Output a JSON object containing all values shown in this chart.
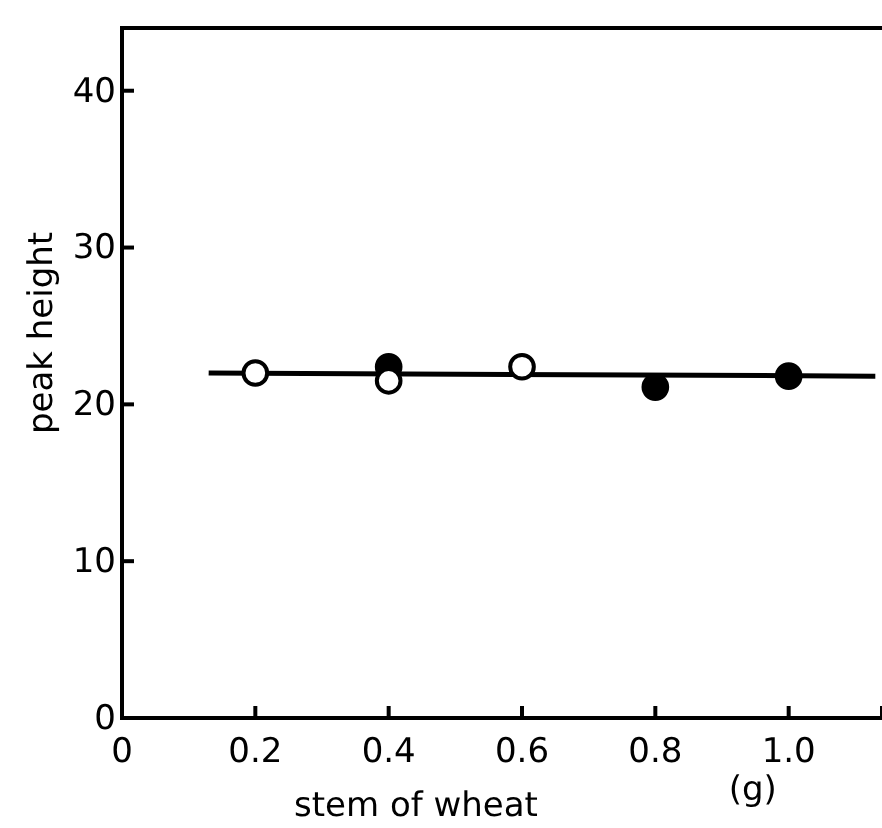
{
  "chart_data": {
    "type": "scatter",
    "xlabel": "stem of wheat",
    "ylabel": "peak height",
    "annotations": [
      "(g)"
    ],
    "xlim": [
      0,
      1.14
    ],
    "ylim": [
      0,
      44
    ],
    "xticks": [
      0,
      0.2,
      0.4,
      0.6,
      0.8,
      {
        "value": 1,
        "label": "1.0"
      }
    ],
    "yticks": [
      0,
      10,
      20,
      30,
      40
    ],
    "grid": false,
    "series": [
      {
        "color": "#ffffff",
        "marker": "circle",
        "x": [
          0.2,
          0.4,
          0.6
        ],
        "values": [
          22.0,
          21.5,
          22.4
        ]
      },
      {
        "color": "#000000",
        "marker": "circle",
        "x": [
          0.4,
          0.8,
          1.0
        ],
        "values": [
          22.4,
          21.1,
          21.8
        ]
      },
      {
        "type": "line",
        "color": "#000000",
        "x": [
          0.13,
          1.13
        ],
        "values": [
          22.0,
          21.8
        ]
      }
    ]
  }
}
